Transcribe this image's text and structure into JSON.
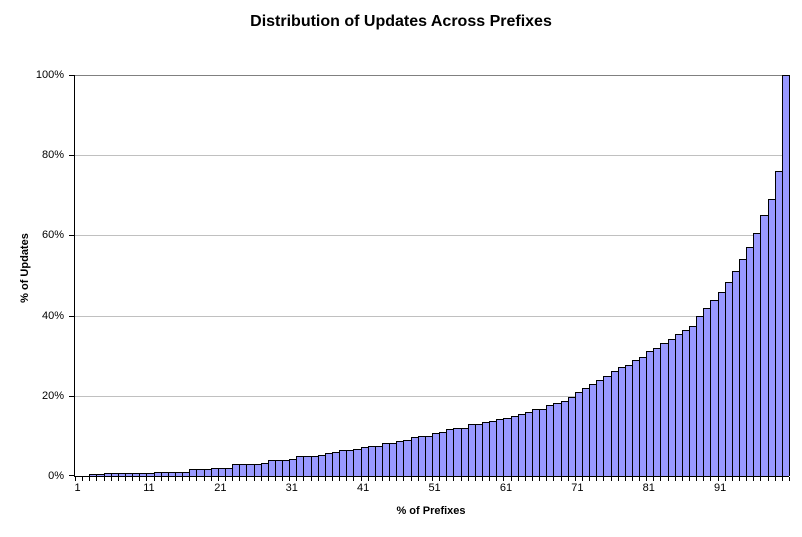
{
  "chart_data": {
    "type": "bar",
    "title": "Distribution of Updates Across Prefixes",
    "xlabel": "% of Prefixes",
    "ylabel": "% of Updates",
    "x_range": [
      1,
      100
    ],
    "ylim": [
      0,
      100
    ],
    "grid": "horizontal major, every 20%",
    "legend": "none",
    "x_tick_labels": [
      "1",
      "11",
      "21",
      "31",
      "41",
      "51",
      "61",
      "71",
      "81",
      "91"
    ],
    "x_tick_positions": [
      1,
      11,
      21,
      31,
      41,
      51,
      61,
      71,
      81,
      91
    ],
    "y_tick_labels": [
      "0%",
      "20%",
      "40%",
      "60%",
      "80%",
      "100%"
    ],
    "y_tick_values": [
      0,
      20,
      40,
      60,
      80,
      100
    ],
    "categories_note": "one bar per percent of prefixes, 1 through 100",
    "values": [
      0.05,
      0.1,
      0.15,
      0.2,
      0.7,
      0.7,
      0.75,
      0.8,
      0.8,
      0.8,
      0.85,
      0.9,
      0.9,
      0.9,
      0.95,
      1.0,
      1.7,
      1.8,
      1.8,
      1.9,
      1.9,
      2.0,
      3.0,
      3.0,
      3.1,
      3.1,
      3.2,
      4.0,
      4.0,
      4.1,
      4.2,
      5.0,
      5.0,
      5.1,
      5.2,
      5.8,
      5.9,
      6.5,
      6.6,
      6.7,
      7.3,
      7.4,
      7.5,
      8.2,
      8.3,
      8.8,
      9.0,
      9.8,
      10.0,
      10.0,
      10.8,
      11.0,
      11.6,
      11.9,
      12.0,
      12.9,
      13.0,
      13.5,
      13.6,
      14.1,
      14.4,
      15.0,
      15.5,
      16.0,
      16.6,
      16.8,
      17.7,
      18.1,
      18.8,
      19.8,
      20.9,
      21.9,
      22.9,
      23.9,
      25.0,
      26.1,
      27.2,
      27.8,
      28.9,
      29.8,
      31.2,
      31.8,
      33.1,
      34.1,
      35.3,
      36.4,
      37.4,
      40.0,
      42.0,
      44.0,
      46.0,
      48.5,
      51.0,
      54.0,
      57.0,
      60.5,
      65.0,
      69.0,
      76.0,
      100.0
    ],
    "colors": {
      "bar_fill": "#9999FF",
      "bar_border": "#000000",
      "gridline": "#C0C0C0",
      "gridline_top": "#808080",
      "axis": "#000000",
      "background": "#FFFFFF",
      "text": "#000000"
    }
  }
}
